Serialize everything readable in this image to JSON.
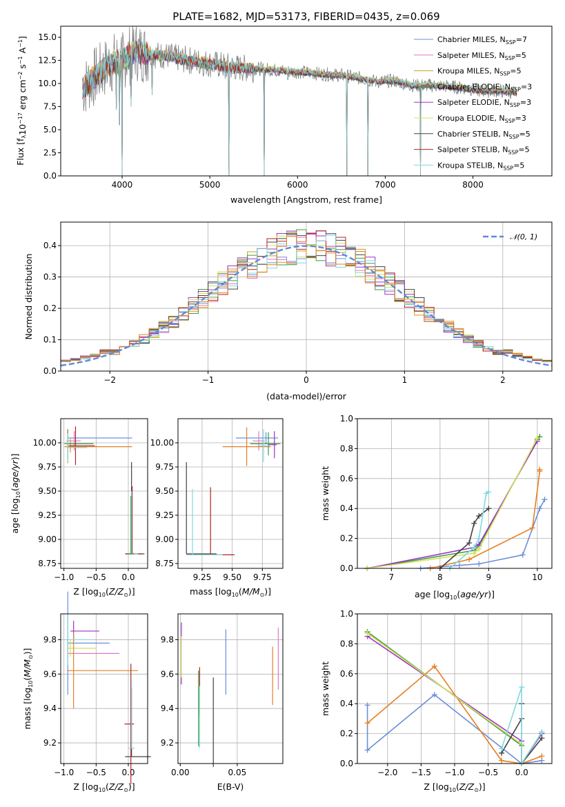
{
  "figure": {
    "title": "PLATE=1682, MJD=53173, FIBERID=0435, z=0.069"
  },
  "legend_panel1": [
    {
      "label": "Chabrier MILES, N",
      "sub": "SSP",
      "suffix": "=7",
      "color": "#6a8fd9"
    },
    {
      "label": "Salpeter MILES, N",
      "sub": "SSP",
      "suffix": "=5",
      "color": "#e377c2"
    },
    {
      "label": "Kroupa MILES, N",
      "sub": "SSP",
      "suffix": "=5",
      "color": "#c89e1a"
    },
    {
      "label": "Chabrier ELODIE, N",
      "sub": "SSP",
      "suffix": "=3",
      "color": "#3f9a3f"
    },
    {
      "label": "Salpeter ELODIE, N",
      "sub": "SSP",
      "suffix": "=3",
      "color": "#9b30c8"
    },
    {
      "label": "Kroupa ELODIE, N",
      "sub": "SSP",
      "suffix": "=3",
      "color": "#d4e157"
    },
    {
      "label": "Chabrier STELIB, N",
      "sub": "SSP",
      "suffix": "=5",
      "color": "#404040"
    },
    {
      "label": "Salpeter STELIB, N",
      "sub": "SSP",
      "suffix": "=5",
      "color": "#b22222"
    },
    {
      "label": "Kroupa STELIB, N",
      "sub": "SSP",
      "suffix": "=5",
      "color": "#7fd8e0"
    }
  ],
  "chart_data": [
    {
      "type": "line",
      "id": "spectrum",
      "xlabel": "wavelength [Angstrom, rest frame]",
      "ylabel": "Flux [f",
      "xlim": [
        3300,
        8900
      ],
      "ylim": [
        0,
        16.2
      ],
      "xticks": [
        4000,
        5000,
        6000,
        7000,
        8000
      ],
      "yticks": [
        0.0,
        2.5,
        5.0,
        7.5,
        10.0,
        12.5,
        15.0
      ],
      "grid": false,
      "series_shape": [
        [
          3550,
          9.5
        ],
        [
          3700,
          10.8
        ],
        [
          3850,
          12.0
        ],
        [
          3950,
          12.5
        ],
        [
          4050,
          12.8
        ],
        [
          4150,
          13.5
        ],
        [
          4300,
          13.2
        ],
        [
          4500,
          13.0
        ],
        [
          4700,
          12.6
        ],
        [
          4900,
          12.3
        ],
        [
          5100,
          12.0
        ],
        [
          5300,
          11.7
        ],
        [
          5500,
          11.6
        ],
        [
          5700,
          11.5
        ],
        [
          5900,
          11.3
        ],
        [
          6100,
          11.2
        ],
        [
          6300,
          11.0
        ],
        [
          6500,
          10.9
        ],
        [
          6700,
          10.6
        ],
        [
          6900,
          10.2
        ],
        [
          7100,
          10.3
        ],
        [
          7300,
          9.8
        ],
        [
          7500,
          9.8
        ],
        [
          7700,
          9.7
        ],
        [
          7900,
          9.5
        ],
        [
          8100,
          9.2
        ],
        [
          8300,
          9.2
        ],
        [
          8500,
          9.0
        ]
      ],
      "absorption": [
        [
          3934,
          7.2
        ],
        [
          3968,
          5.5
        ],
        [
          4000,
          0.0
        ],
        [
          4102,
          7.5
        ],
        [
          4340,
          8.8
        ],
        [
          5175,
          10.5
        ],
        [
          5220,
          0.0
        ],
        [
          5620,
          0.0
        ],
        [
          5890,
          10.4
        ],
        [
          6563,
          0.0
        ],
        [
          6800,
          0.0
        ],
        [
          7400,
          0.0
        ]
      ]
    },
    {
      "type": "line",
      "id": "residual_hist",
      "xlabel": "(data-model)/error",
      "ylabel": "Normed distribution",
      "xlim": [
        -2.5,
        2.5
      ],
      "ylim": [
        0,
        0.475
      ],
      "xticks": [
        -2,
        -1,
        0,
        1,
        2
      ],
      "yticks": [
        0.0,
        0.1,
        0.2,
        0.3,
        0.4
      ],
      "grid": true,
      "legend": "upper-right",
      "legend_label": "𝒩(0, 1)",
      "gaussian": {
        "mean": 0,
        "sigma": 1,
        "color": "#5b8ad9"
      },
      "bin_width": 0.1
    },
    {
      "type": "scatter",
      "id": "age_vs_Z",
      "xlabel": "Z [log",
      "ylabel": "age  [log",
      "xlim": [
        -1.05,
        0.3
      ],
      "ylim": [
        8.7,
        10.25
      ],
      "xticks": [
        -1.0,
        -0.5,
        0.0
      ],
      "yticks": [
        8.75,
        9.0,
        9.25,
        9.5,
        9.75,
        10.0
      ],
      "grid": true,
      "points": [
        {
          "x": -0.94,
          "y": 10.05,
          "xerr": [
            0.0,
            1.0
          ],
          "yerr": 0.09,
          "c": "#6a8fd9"
        },
        {
          "x": -0.84,
          "y": 10.02,
          "xerr": [
            0.12,
            0.1
          ],
          "yerr": 0.1,
          "c": "#e377c2"
        },
        {
          "x": -0.9,
          "y": 9.97,
          "xerr": [
            0.05,
            0.05
          ],
          "yerr": 0.07,
          "c": "#c89e1a"
        },
        {
          "x": -0.94,
          "y": 9.99,
          "xerr": [
            0.05,
            0.4
          ],
          "yerr": 0.15,
          "c": "#3f9a3f"
        },
        {
          "x": -0.82,
          "y": 9.97,
          "xerr": [
            0.1,
            0.3
          ],
          "yerr": 0.2,
          "c": "#b22222"
        },
        {
          "x": -0.94,
          "y": 9.96,
          "xerr": [
            0.05,
            1.0
          ],
          "yerr": 0.17,
          "c": "#e67e22"
        },
        {
          "x": -0.94,
          "y": 9.95,
          "xerr": [
            0.0,
            0.3
          ],
          "yerr": 0.15,
          "c": "#7fd8e0"
        },
        {
          "x": 0.05,
          "y": 8.85,
          "xerr": [
            0.1,
            0.2
          ],
          "yerr": [
            0.0,
            0.95
          ],
          "c": "#404040"
        },
        {
          "x": 0.06,
          "y": 8.85,
          "xerr": [
            0.1,
            0.15
          ],
          "yerr": [
            0.0,
            0.7
          ],
          "c": "#b22222"
        },
        {
          "x": 0.05,
          "y": 8.85,
          "xerr": [
            0.0,
            0.1
          ],
          "yerr": [
            0.0,
            0.65
          ],
          "c": "#7fd8e0"
        },
        {
          "x": 0.04,
          "y": 8.85,
          "xerr": [
            0.05,
            0.05
          ],
          "yerr": [
            0.0,
            0.6
          ],
          "c": "#3f9a3f"
        }
      ]
    },
    {
      "type": "scatter",
      "id": "age_vs_mass",
      "xlabel": "mass [log",
      "ylabel": "",
      "xlim": [
        9.05,
        9.92
      ],
      "ylim": [
        8.7,
        10.25
      ],
      "xticks": [
        9.25,
        9.5,
        9.75
      ],
      "yticks": [
        8.75,
        9.0,
        9.25,
        9.5,
        9.75,
        10.0
      ],
      "grid": true,
      "points": [
        {
          "x": 9.78,
          "y": 10.05,
          "xerr": [
            0.25,
            0.1
          ],
          "yerr": 0.06,
          "c": "#6a8fd9"
        },
        {
          "x": 9.72,
          "y": 10.02,
          "xerr": [
            0.05,
            0.05
          ],
          "yerr": 0.1,
          "c": "#e377c2"
        },
        {
          "x": 9.62,
          "y": 9.96,
          "xerr": [
            0.2,
            0.2
          ],
          "yerr": 0.2,
          "c": "#e67e22"
        },
        {
          "x": 9.8,
          "y": 9.99,
          "xerr": [
            0.15,
            0.1
          ],
          "yerr": 0.12,
          "c": "#3f9a3f"
        },
        {
          "x": 9.85,
          "y": 9.98,
          "xerr": [
            0.05,
            0.02
          ],
          "yerr": 0.14,
          "c": "#9b30c8"
        },
        {
          "x": 9.76,
          "y": 9.97,
          "xerr": [
            0.05,
            0.05
          ],
          "yerr": 0.17,
          "c": "#7fd8e0"
        },
        {
          "x": 9.12,
          "y": 8.85,
          "xerr": [
            0.0,
            0.25
          ],
          "yerr": [
            0.0,
            0.95
          ],
          "c": "#404040"
        },
        {
          "x": 9.32,
          "y": 8.84,
          "xerr": [
            0.2,
            0.2
          ],
          "yerr": [
            0.0,
            0.7
          ],
          "c": "#b22222"
        },
        {
          "x": 9.17,
          "y": 8.84,
          "xerr": [
            0.05,
            0.25
          ],
          "yerr": [
            0.0,
            0.68
          ],
          "c": "#7fd8e0"
        }
      ]
    },
    {
      "type": "line",
      "id": "massweight_vs_age",
      "xlabel": "age  [log",
      "ylabel": "mass weight",
      "xlim": [
        6.3,
        10.3
      ],
      "ylim": [
        0,
        1.0
      ],
      "xticks": [
        7,
        8,
        9,
        10
      ],
      "yticks": [
        0.0,
        0.2,
        0.4,
        0.6,
        0.8,
        1.0
      ],
      "grid": true,
      "series": [
        {
          "c": "#6a8fd9",
          "x": [
            7.6,
            8.4,
            8.8,
            9.7,
            10.05,
            10.15
          ],
          "y": [
            0.0,
            0.02,
            0.03,
            0.09,
            0.4,
            0.46
          ]
        },
        {
          "c": "#e67e22",
          "x": [
            7.8,
            8.6,
            9.9,
            10.05,
            10.05
          ],
          "y": [
            0.0,
            0.06,
            0.27,
            0.65,
            0.66
          ]
        },
        {
          "c": "#3f9a3f",
          "x": [
            6.5,
            8.7,
            8.8,
            10.0,
            10.05
          ],
          "y": [
            0.0,
            0.12,
            0.15,
            0.86,
            0.88
          ]
        },
        {
          "c": "#9b30c8",
          "x": [
            6.5,
            8.7,
            8.8,
            10.0
          ],
          "y": [
            0.0,
            0.14,
            0.16,
            0.85
          ]
        },
        {
          "c": "#d4e157",
          "x": [
            6.5,
            8.7,
            8.8,
            10.0
          ],
          "y": [
            0.0,
            0.1,
            0.13,
            0.87
          ]
        },
        {
          "c": "#404040",
          "x": [
            8.0,
            8.6,
            8.7,
            8.8,
            9.0
          ],
          "y": [
            0.0,
            0.17,
            0.3,
            0.35,
            0.4
          ]
        },
        {
          "c": "#7fd8e0",
          "x": [
            8.2,
            8.7,
            8.8,
            8.95,
            9.0
          ],
          "y": [
            0.0,
            0.14,
            0.2,
            0.5,
            0.51
          ]
        }
      ]
    },
    {
      "type": "scatter",
      "id": "mass_vs_Z",
      "xlabel": "Z [log",
      "ylabel": "mass [log",
      "xlim": [
        -1.05,
        0.3
      ],
      "ylim": [
        9.08,
        9.95
      ],
      "xticks": [
        -1.0,
        -0.5,
        0.0
      ],
      "yticks": [
        9.2,
        9.4,
        9.6,
        9.8
      ],
      "grid": true,
      "points": [
        {
          "x": -0.94,
          "y": 9.78,
          "xerr": [
            0.0,
            0.65
          ],
          "yerr": 0.3,
          "c": "#6a8fd9"
        },
        {
          "x": -0.85,
          "y": 9.85,
          "xerr": [
            0.05,
            0.4
          ],
          "yerr": 0.06,
          "c": "#9b30c8"
        },
        {
          "x": -0.94,
          "y": 9.72,
          "xerr": [
            0.0,
            0.8
          ],
          "yerr": 0.03,
          "c": "#e377c2"
        },
        {
          "x": -0.9,
          "y": 9.75,
          "xerr": [
            0.05,
            0.4
          ],
          "yerr": 0.05,
          "c": "#d4e157"
        },
        {
          "x": -0.85,
          "y": 9.62,
          "xerr": [
            0.1,
            1.0
          ],
          "yerr": 0.22,
          "c": "#e67e22"
        },
        {
          "x": -0.94,
          "y": 9.8,
          "xerr": [
            0.0,
            0.3
          ],
          "yerr": 0.15,
          "c": "#7fd8e0"
        },
        {
          "x": 0.05,
          "y": 9.12,
          "xerr": [
            0.1,
            0.3
          ],
          "yerr": [
            0.0,
            0.4
          ],
          "c": "#404040"
        },
        {
          "x": 0.04,
          "y": 9.31,
          "xerr": [
            0.1,
            0.05
          ],
          "yerr": 0.35,
          "c": "#b22222"
        },
        {
          "x": 0.05,
          "y": 9.17,
          "xerr": [
            0.05,
            0.05
          ],
          "yerr": [
            0.0,
            0.4
          ],
          "c": "#7fd8e0"
        }
      ]
    },
    {
      "type": "scatter",
      "id": "mass_vs_ebv",
      "xlabel": "E(B-V)",
      "ylabel": "",
      "xlim": [
        -0.002,
        0.09
      ],
      "ylim": [
        9.08,
        9.95
      ],
      "xticks": [
        0.0,
        0.05
      ],
      "yticks": [
        9.2,
        9.4,
        9.6,
        9.8
      ],
      "grid": true,
      "points": [
        {
          "x": 0.001,
          "y": 9.72,
          "yerr": 0.18,
          "c": "#9b30c8"
        },
        {
          "x": 0.001,
          "y": 9.7,
          "yerr": 0.12,
          "c": "#d4e157"
        },
        {
          "x": 0.016,
          "y": 9.4,
          "yerr": 0.22,
          "c": "#3f9a3f"
        },
        {
          "x": 0.017,
          "y": 9.5,
          "yerr": 0.14,
          "c": "#b22222"
        },
        {
          "x": 0.017,
          "y": 9.35,
          "yerr": 0.18,
          "c": "#7fd8e0"
        },
        {
          "x": 0.029,
          "y": 9.32,
          "yerr": 0.26,
          "c": "#404040"
        },
        {
          "x": 0.04,
          "y": 9.67,
          "yerr": 0.19,
          "c": "#6a8fd9"
        },
        {
          "x": 0.081,
          "y": 9.59,
          "yerr": 0.17,
          "c": "#e67e22"
        },
        {
          "x": 0.086,
          "y": 9.69,
          "yerr": 0.18,
          "c": "#e377c2"
        }
      ]
    },
    {
      "type": "line",
      "id": "massweight_vs_Z",
      "xlabel": "Z [log",
      "ylabel": "mass weight",
      "xlim": [
        -2.45,
        0.45
      ],
      "ylim": [
        0,
        1.0
      ],
      "xticks": [
        -2.0,
        -1.5,
        -1.0,
        -0.5,
        0.0
      ],
      "yticks": [
        0.0,
        0.2,
        0.4,
        0.6,
        0.8,
        1.0
      ],
      "grid": true,
      "series": [
        {
          "c": "#6a8fd9",
          "x": [
            -2.3,
            -2.3,
            -1.3,
            0.0,
            0.0,
            0.3
          ],
          "y": [
            0.39,
            0.09,
            0.46,
            0.0,
            0.0,
            0.02
          ]
        },
        {
          "c": "#e67e22",
          "x": [
            -2.3,
            -1.3,
            -0.3,
            0.0,
            0.3
          ],
          "y": [
            0.27,
            0.65,
            0.02,
            0.0,
            0.05
          ]
        },
        {
          "c": "#3f9a3f",
          "x": [
            -2.3,
            0.0,
            0.0,
            0.3
          ],
          "y": [
            0.88,
            0.12,
            0.0,
            0.21
          ]
        },
        {
          "c": "#9b30c8",
          "x": [
            -2.3,
            0.0,
            0.0,
            0.3
          ],
          "y": [
            0.85,
            0.15,
            0.0,
            0.2
          ]
        },
        {
          "c": "#d4e157",
          "x": [
            -2.3,
            0.0,
            0.0,
            0.3
          ],
          "y": [
            0.87,
            0.13,
            0.0,
            0.21
          ]
        },
        {
          "c": "#404040",
          "x": [
            -0.3,
            0.0,
            0.0,
            0.0,
            0.3
          ],
          "y": [
            0.07,
            0.3,
            0.4,
            0.0,
            0.17
          ]
        },
        {
          "c": "#7fd8e0",
          "x": [
            -0.3,
            0.0,
            0.0,
            0.3
          ],
          "y": [
            0.1,
            0.51,
            0.0,
            0.21
          ]
        }
      ]
    }
  ]
}
